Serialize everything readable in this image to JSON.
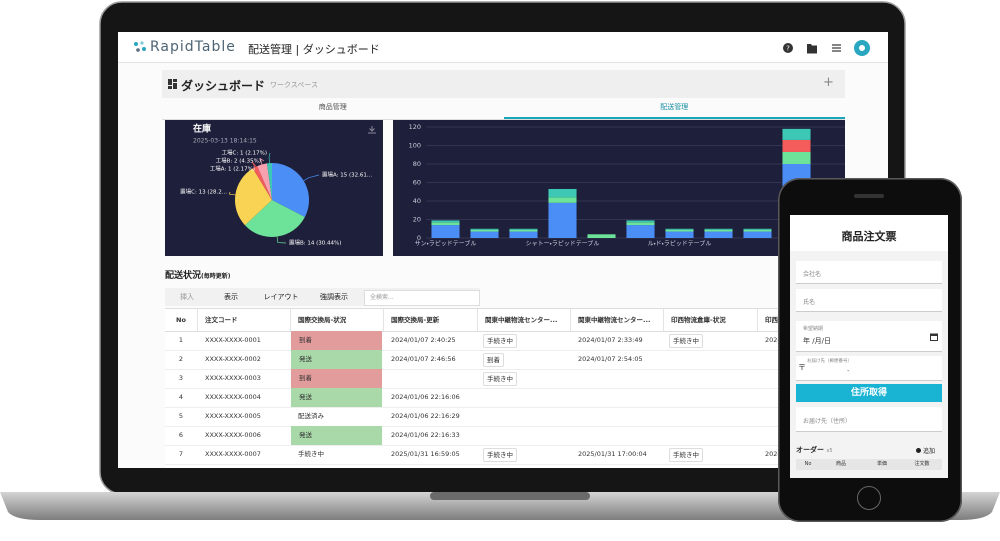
{
  "header": {
    "logo": "RapidTable",
    "title": "配送管理 | ダッシュボード"
  },
  "dashboard": {
    "title": "ダッシュボード",
    "workspace": "ワークスペース",
    "add": "+"
  },
  "tabs": [
    "商品管理",
    "配送管理"
  ],
  "active_tab": 1,
  "chart_data": [
    {
      "type": "pie",
      "title": "在庫",
      "subtitle": "2025-03-13 18:14:15",
      "values": [
        15,
        14,
        13,
        1,
        2,
        1
      ],
      "value_labels": [
        "置場A: 15 (32.61...",
        "置場B: 14 (30.44%)",
        "置場C: 13 (28.2...",
        "工場A: 1 (2.17%)",
        "工場B: 2 (4.35%)",
        "工場C: 1 (2.17%)"
      ],
      "colors": [
        "#4b8ef5",
        "#6de39a",
        "#f8d354",
        "#f45b5b",
        "#f7a1b0",
        "#3cc8b4"
      ]
    },
    {
      "type": "bar",
      "stacked": true,
      "categories": [
        "サン・ラピッドテーブル",
        null,
        null,
        "シャトー・ラピッドテーブル",
        null,
        null,
        "ル・ド・ラピッドテーブル",
        null,
        null,
        "ル・ヴ"
      ],
      "series": [
        {
          "color": "#4b8ef5",
          "values": [
            14,
            7,
            7,
            38,
            0,
            14,
            7,
            7,
            7,
            80
          ]
        },
        {
          "color": "#6de39a",
          "values": [
            3,
            2,
            2,
            6,
            4,
            3,
            2,
            2,
            2,
            13
          ]
        },
        {
          "color": "#f45b5b",
          "values": [
            0,
            0,
            0,
            0,
            0,
            0,
            0,
            0,
            0,
            13
          ]
        },
        {
          "color": "#3cc8b4",
          "values": [
            2,
            1,
            1,
            9,
            0,
            2,
            1,
            1,
            1,
            12
          ]
        }
      ],
      "ylim": [
        0,
        120
      ],
      "yticks": [
        0,
        20,
        40,
        60,
        80,
        100,
        120
      ],
      "grid": true
    }
  ],
  "section_title": "配送状況",
  "section_note": "(毎時更新)",
  "toolbar": [
    "挿入",
    "表示",
    "レイアウト",
    "強調表示"
  ],
  "search_placeholder": "全検索...",
  "table": {
    "columns": [
      "No",
      "注文コード",
      "国際交換局-状況",
      "国際交換局-更新",
      "関東中継物流センター...",
      "関東中継物流センター...",
      "印西物流倉庫-状況",
      "印西"
    ],
    "rows": [
      [
        "1",
        "XXXX-XXXX-0001",
        "到着",
        "2024/01/07 2:40:25",
        "手続き中",
        "2024/01/07 2:33:49",
        "手続き中",
        "2024"
      ],
      [
        "2",
        "XXXX-XXXX-0002",
        "発送",
        "2024/01/07 2:46:56",
        "到着",
        "2024/01/07 2:54:05",
        null,
        null
      ],
      [
        "3",
        "XXXX-XXXX-0003",
        "到着",
        null,
        "手続き中",
        null,
        null,
        null
      ],
      [
        "4",
        "XXXX-XXXX-0004",
        "発送",
        "2024/01/06 22:16:06",
        null,
        null,
        null,
        null
      ],
      [
        "5",
        "XXXX-XXXX-0005",
        "配送済み",
        "2024/01/06 22:16:29",
        null,
        null,
        null,
        null
      ],
      [
        "6",
        "XXXX-XXXX-0006",
        "発送",
        "2024/01/06 22:16:33",
        null,
        null,
        null,
        null
      ],
      [
        "7",
        "XXXX-XXXX-0007",
        "手続き中",
        "2025/01/31 16:59:05",
        "手続き中",
        "2025/01/31 17:00:04",
        "手続き中",
        "2024"
      ]
    ],
    "status_colors": {
      "到着": "#e39c9c",
      "発送": "#a9d9a9"
    }
  },
  "phone": {
    "title": "商品注文票",
    "fields": [
      "会社名",
      "氏名"
    ],
    "date_label": "希望納期",
    "date_placeholder": "年 /月/日",
    "postal_mark": "〒",
    "postal_label": "お届け先（郵便番号）",
    "postal_placeholder": "-",
    "button": "住所取得",
    "address_label": "お届け先（住所）",
    "order_title": "オーダー",
    "order_count": "x5",
    "add": "追加",
    "order_columns": [
      "No",
      "商品",
      "単価",
      "注文数"
    ]
  }
}
